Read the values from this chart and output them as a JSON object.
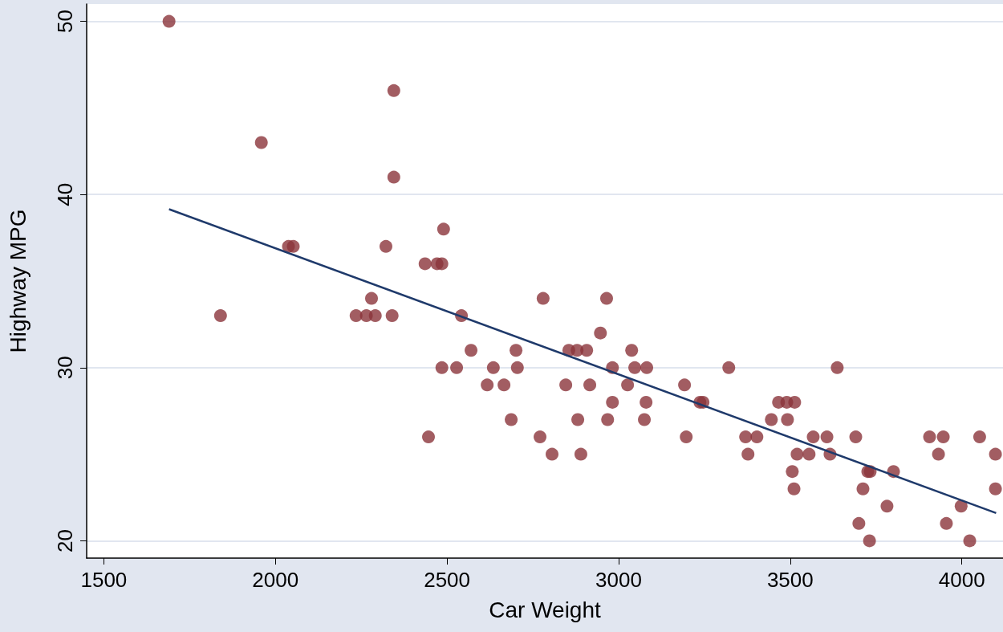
{
  "chart_data": {
    "type": "scatter",
    "xlabel": "Car Weight",
    "ylabel": "Highway MPG",
    "xlim": [
      1450,
      4120
    ],
    "ylim": [
      19,
      51
    ],
    "xticks": [
      1500,
      2000,
      2500,
      3000,
      3500,
      4000
    ],
    "yticks": [
      20,
      30,
      40,
      50
    ],
    "grid": "y",
    "marker": "circle",
    "series": [
      {
        "color": "#8b343b",
        "x": [
          1690,
          1840,
          1959,
          2038,
          2052,
          2235,
          2265,
          2291,
          2280,
          2322,
          2340,
          2345,
          2345,
          2436,
          2471,
          2485,
          2490,
          2446,
          2485,
          2528,
          2542,
          2570,
          2617,
          2635,
          2666,
          2687,
          2701,
          2705,
          2771,
          2780,
          2806,
          2846,
          2855,
          2879,
          2907,
          2881,
          2890,
          2916,
          2947,
          2965,
          2968,
          2982,
          2982,
          3026,
          3038,
          3047,
          3075,
          3082,
          3080,
          3192,
          3197,
          3237,
          3246,
          3321,
          3370,
          3377,
          3403,
          3445,
          3466,
          3490,
          3492,
          3513,
          3506,
          3511,
          3520,
          3555,
          3567,
          3607,
          3616,
          3637,
          3691,
          3700,
          3712,
          3726,
          3733,
          3731,
          3782,
          3801,
          3906,
          3932,
          3946,
          3955,
          3998,
          4023,
          4052,
          4098,
          4098
        ],
        "values": [
          50,
          33,
          43,
          37,
          37,
          33,
          33,
          33,
          34,
          37,
          33,
          46,
          41,
          36,
          36,
          36,
          38,
          26,
          30,
          30,
          33,
          31,
          29,
          30,
          29,
          27,
          31,
          30,
          26,
          34,
          25,
          29,
          31,
          31,
          31,
          27,
          25,
          29,
          32,
          34,
          27,
          30,
          28,
          29,
          31,
          30,
          27,
          30,
          28,
          29,
          26,
          28,
          28,
          30,
          26,
          25,
          26,
          27,
          28,
          28,
          27,
          28,
          24,
          23,
          25,
          25,
          26,
          26,
          25,
          30,
          26,
          21,
          23,
          24,
          24,
          20,
          22,
          24,
          26,
          25,
          26,
          21,
          22,
          20,
          26,
          25,
          23
        ]
      },
      {
        "type": "line",
        "color": "#1f3a6b",
        "marker": "none",
        "x": [
          1690,
          4100
        ],
        "values": [
          39.15,
          21.6
        ]
      }
    ]
  }
}
